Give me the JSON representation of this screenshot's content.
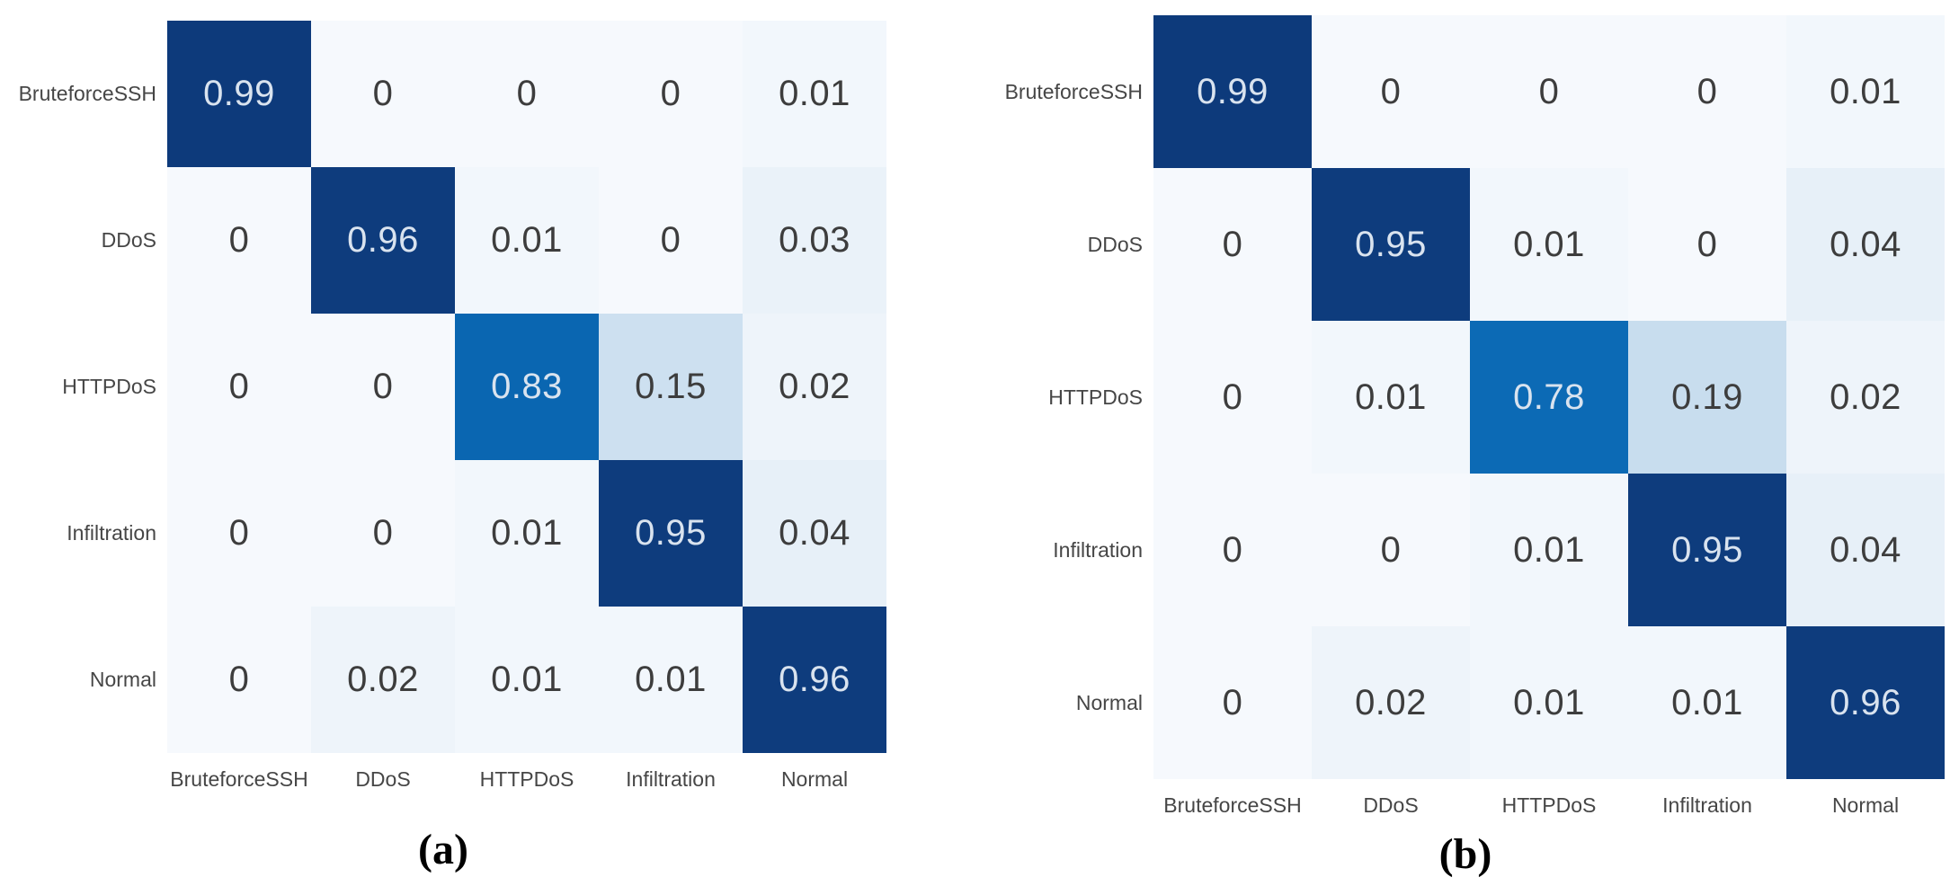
{
  "figure": {
    "description": "Two side-by-side confusion matrix heatmaps",
    "panels": [
      {
        "caption": "(a)",
        "row_labels": [
          "BruteforceSSH",
          "DDoS",
          "HTTPDoS",
          "Infiltration",
          "Normal"
        ],
        "col_labels": [
          "BruteforceSSH",
          "DDoS",
          "HTTPDoS",
          "Infiltration",
          "Normal"
        ],
        "cells": [
          [
            "0.99",
            "0",
            "0",
            "0",
            "0.01"
          ],
          [
            "0",
            "0.96",
            "0.01",
            "0",
            "0.03"
          ],
          [
            "0",
            "0",
            "0.83",
            "0.15",
            "0.02"
          ],
          [
            "0",
            "0",
            "0.01",
            "0.95",
            "0.04"
          ],
          [
            "0",
            "0.02",
            "0.01",
            "0.01",
            "0.96"
          ]
        ]
      },
      {
        "caption": "(b)",
        "row_labels": [
          "BruteforceSSH",
          "DDoS",
          "HTTPDoS",
          "Infiltration",
          "Normal"
        ],
        "col_labels": [
          "BruteforceSSH",
          "DDoS",
          "HTTPDoS",
          "Infiltration",
          "Normal"
        ],
        "cells": [
          [
            "0.99",
            "0",
            "0",
            "0",
            "0.01"
          ],
          [
            "0",
            "0.95",
            "0.01",
            "0",
            "0.04"
          ],
          [
            "0",
            "0.01",
            "0.78",
            "0.19",
            "0.02"
          ],
          [
            "0",
            "0",
            "0.01",
            "0.95",
            "0.04"
          ],
          [
            "0",
            "0.02",
            "0.01",
            "0.01",
            "0.96"
          ]
        ]
      }
    ],
    "colors": {
      "page_background": "#ffffff",
      "label_text": "#464646",
      "caption_text": "#000000",
      "dark_cell_text": "#d9e3ef",
      "light_cell_text": "#3d3d3d",
      "value_colors": {
        "0": "#f6f9fd",
        "0.01": "#f2f7fc",
        "0.02": "#eef4fa",
        "0.03": "#eaf2f9",
        "0.04": "#e7f0f8",
        "0.15": "#cde0f0",
        "0.19": "#c8ddee",
        "0.78": "#0c6ab5",
        "0.83": "#0a66b1",
        "0.95": "#0e3c7d",
        "0.96": "#0e3c7d",
        "0.99": "#0d3a7b"
      }
    },
    "dark_text_threshold": 0.5
  },
  "chart_data": [
    {
      "type": "heatmap",
      "title": "(a)",
      "xlabel": "",
      "ylabel": "",
      "x_categories": [
        "BruteforceSSH",
        "DDoS",
        "HTTPDoS",
        "Infiltration",
        "Normal"
      ],
      "y_categories": [
        "BruteforceSSH",
        "DDoS",
        "HTTPDoS",
        "Infiltration",
        "Normal"
      ],
      "values": [
        [
          0.99,
          0,
          0,
          0,
          0.01
        ],
        [
          0,
          0.96,
          0.01,
          0,
          0.03
        ],
        [
          0,
          0,
          0.83,
          0.15,
          0.02
        ],
        [
          0,
          0,
          0.01,
          0.95,
          0.04
        ],
        [
          0,
          0.02,
          0.01,
          0.01,
          0.96
        ]
      ],
      "value_range": [
        0,
        1
      ],
      "colormap": "Blues",
      "grid": false,
      "legend": "none"
    },
    {
      "type": "heatmap",
      "title": "(b)",
      "xlabel": "",
      "ylabel": "",
      "x_categories": [
        "BruteforceSSH",
        "DDoS",
        "HTTPDoS",
        "Infiltration",
        "Normal"
      ],
      "y_categories": [
        "BruteforceSSH",
        "DDoS",
        "HTTPDoS",
        "Infiltration",
        "Normal"
      ],
      "values": [
        [
          0.99,
          0,
          0,
          0,
          0.01
        ],
        [
          0,
          0.95,
          0.01,
          0,
          0.04
        ],
        [
          0,
          0.01,
          0.78,
          0.19,
          0.02
        ],
        [
          0,
          0,
          0.01,
          0.95,
          0.04
        ],
        [
          0,
          0.02,
          0.01,
          0.01,
          0.96
        ]
      ],
      "value_range": [
        0,
        1
      ],
      "colormap": "Blues",
      "grid": false,
      "legend": "none"
    }
  ]
}
